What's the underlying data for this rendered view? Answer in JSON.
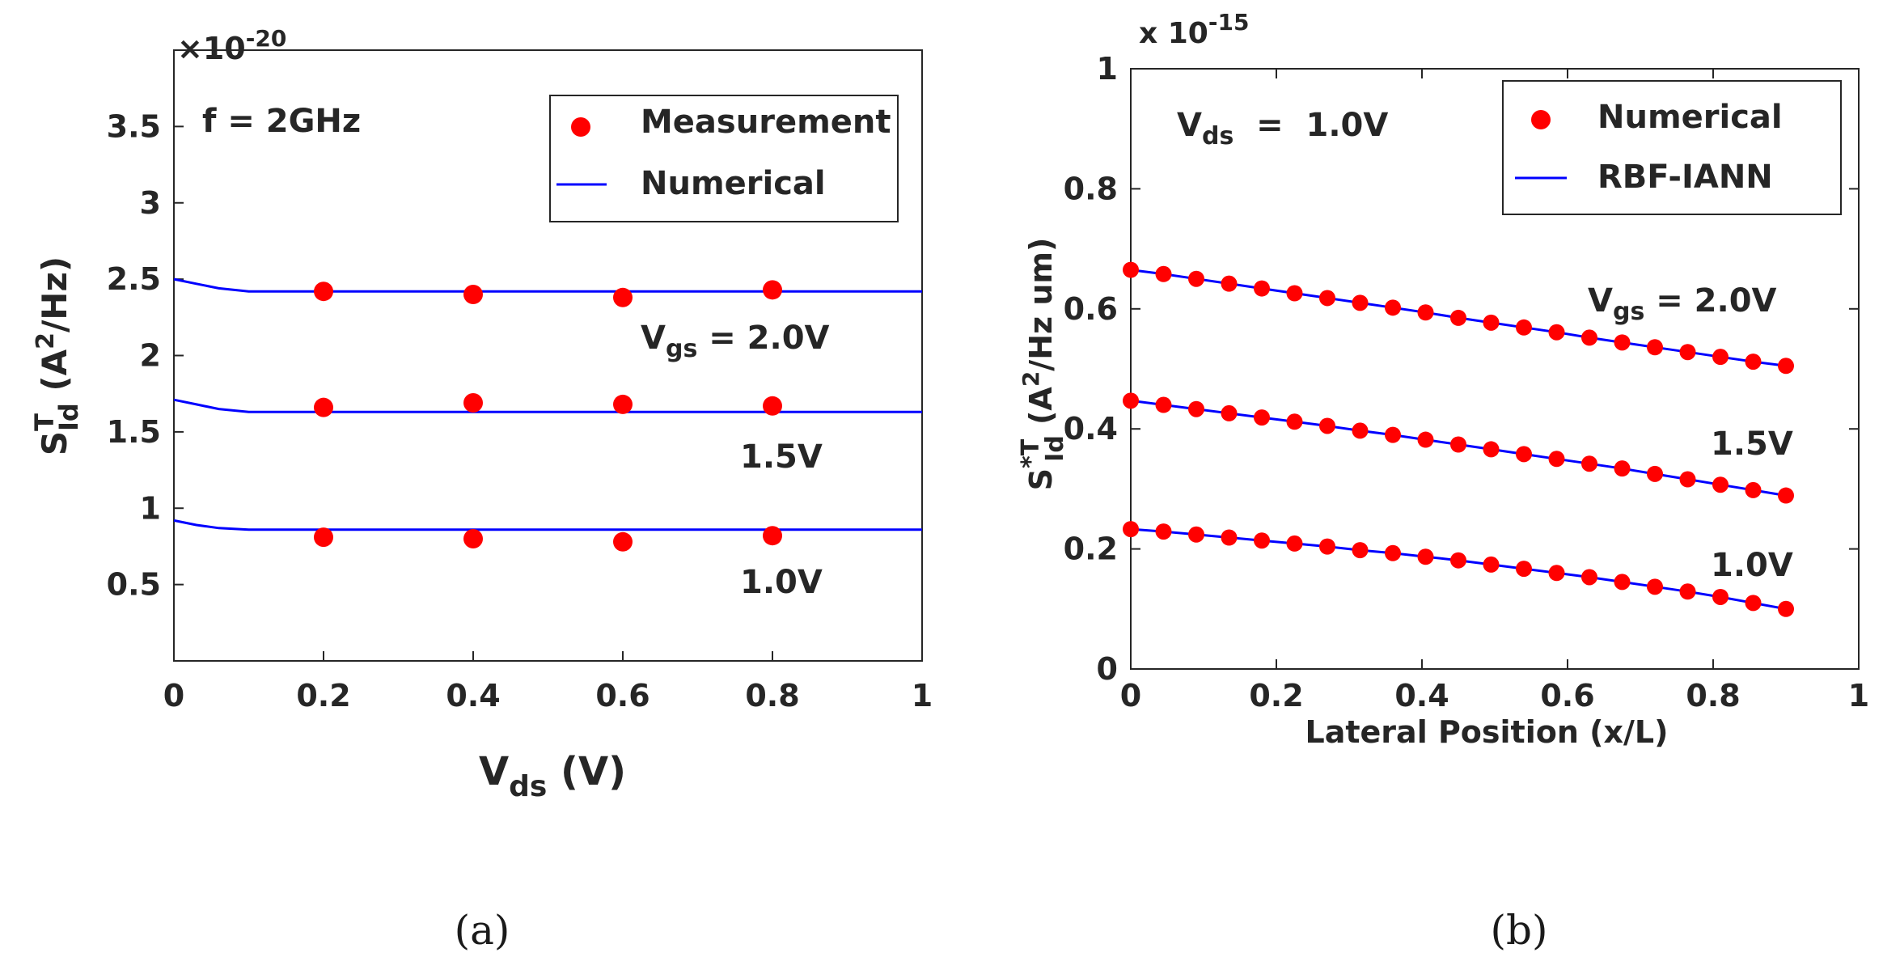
{
  "colors": {
    "measurement": "#ff0000",
    "numerical_line": "#0000ff",
    "axis": "#262626"
  },
  "chart_data": [
    {
      "panel": "(a)",
      "type": "line",
      "x_exponent_label": "×10",
      "exponent": "-20",
      "annotation": "f = 2GHz",
      "xlabel": {
        "main": "V",
        "sub": "ds",
        "rest": " (V)"
      },
      "ylabel": {
        "main": "S",
        "sup": "T",
        "sub": "Id",
        "rest1": " (A",
        "sup2": "2",
        "rest2": "/Hz)"
      },
      "xlim": [
        0,
        1
      ],
      "ylim": [
        0,
        4
      ],
      "xticks": [
        0,
        0.2,
        0.4,
        0.6,
        0.8,
        1
      ],
      "xticklabels": [
        "0",
        "0.2",
        "0.4",
        "0.6",
        "0.8",
        "1"
      ],
      "yticks": [
        0.5,
        1,
        1.5,
        2,
        2.5,
        3,
        3.5
      ],
      "yticklabels": [
        "0.5",
        "1",
        "1.5",
        "2",
        "2.5",
        "3",
        "3.5"
      ],
      "legend": {
        "position": "top-right",
        "entries": [
          "Measurement",
          "Numerical"
        ]
      },
      "series": [
        {
          "name": "Vgs = 2.0V",
          "label_main": "V",
          "label_sub": "gs",
          "label_rest": " =  2.0V",
          "measurement": {
            "x": [
              0.2,
              0.4,
              0.6,
              0.8
            ],
            "y": [
              2.42,
              2.4,
              2.38,
              2.43
            ]
          },
          "numerical": {
            "x": [
              0,
              0.03,
              0.06,
              0.1,
              0.15,
              0.2,
              1.0
            ],
            "y": [
              2.5,
              2.47,
              2.44,
              2.42,
              2.42,
              2.42,
              2.42
            ]
          }
        },
        {
          "name": "1.5V",
          "label_main": "1.5V",
          "label_sub": "",
          "label_rest": "",
          "measurement": {
            "x": [
              0.2,
              0.4,
              0.6,
              0.8
            ],
            "y": [
              1.66,
              1.69,
              1.68,
              1.67
            ]
          },
          "numerical": {
            "x": [
              0,
              0.03,
              0.06,
              0.1,
              0.15,
              0.2,
              1.0
            ],
            "y": [
              1.71,
              1.68,
              1.65,
              1.63,
              1.63,
              1.63,
              1.63
            ]
          }
        },
        {
          "name": "1.0V",
          "label_main": "1.0V",
          "label_sub": "",
          "label_rest": "",
          "measurement": {
            "x": [
              0.2,
              0.4,
              0.6,
              0.8
            ],
            "y": [
              0.81,
              0.8,
              0.78,
              0.82
            ]
          },
          "numerical": {
            "x": [
              0,
              0.03,
              0.06,
              0.1,
              0.15,
              0.2,
              1.0
            ],
            "y": [
              0.92,
              0.89,
              0.87,
              0.86,
              0.86,
              0.86,
              0.86
            ]
          }
        }
      ]
    },
    {
      "panel": "(b)",
      "type": "line",
      "x_exponent_label": "x 10",
      "exponent": "-15",
      "annotation": {
        "main": "V",
        "sub": "ds",
        "rest": "  =  1.0V"
      },
      "xlabel": "Lateral Position (x/L)",
      "ylabel": {
        "main": "S",
        "sup": "*T",
        "sub": "Id",
        "rest1": " (A",
        "sup2": "2",
        "rest2": "/Hz um)"
      },
      "xlim": [
        0,
        1
      ],
      "ylim": [
        0,
        1
      ],
      "xticks": [
        0,
        0.2,
        0.4,
        0.6,
        0.8,
        1
      ],
      "xticklabels": [
        "0",
        "0.2",
        "0.4",
        "0.6",
        "0.8",
        "1"
      ],
      "yticks": [
        0,
        0.2,
        0.4,
        0.6,
        0.8,
        1
      ],
      "yticklabels": [
        "0",
        "0.2",
        "0.4",
        "0.6",
        "0.8",
        "1"
      ],
      "legend": {
        "position": "top-right",
        "entries": [
          "Numerical",
          "RBF-IANN"
        ]
      },
      "series": [
        {
          "name": "Vgs = 2.0V",
          "label_main": "V",
          "label_sub": "gs",
          "label_rest": " =  2.0V",
          "x": [
            0,
            0.045,
            0.09,
            0.135,
            0.18,
            0.225,
            0.27,
            0.315,
            0.36,
            0.405,
            0.45,
            0.495,
            0.54,
            0.585,
            0.63,
            0.675,
            0.72,
            0.765,
            0.81,
            0.855,
            0.9
          ],
          "y": [
            0.665,
            0.658,
            0.65,
            0.642,
            0.634,
            0.626,
            0.618,
            0.61,
            0.602,
            0.594,
            0.585,
            0.577,
            0.569,
            0.561,
            0.552,
            0.544,
            0.536,
            0.528,
            0.52,
            0.512,
            0.505
          ]
        },
        {
          "name": "1.5V",
          "label_main": "1.5V",
          "label_sub": "",
          "label_rest": "",
          "x": [
            0,
            0.045,
            0.09,
            0.135,
            0.18,
            0.225,
            0.27,
            0.315,
            0.36,
            0.405,
            0.45,
            0.495,
            0.54,
            0.585,
            0.63,
            0.675,
            0.72,
            0.765,
            0.81,
            0.855,
            0.9
          ],
          "y": [
            0.447,
            0.44,
            0.433,
            0.426,
            0.419,
            0.412,
            0.405,
            0.397,
            0.39,
            0.382,
            0.374,
            0.366,
            0.358,
            0.35,
            0.342,
            0.334,
            0.325,
            0.316,
            0.307,
            0.298,
            0.289
          ]
        },
        {
          "name": "1.0V",
          "label_main": "1.0V",
          "label_sub": "",
          "label_rest": "",
          "x": [
            0,
            0.045,
            0.09,
            0.135,
            0.18,
            0.225,
            0.27,
            0.315,
            0.36,
            0.405,
            0.45,
            0.495,
            0.54,
            0.585,
            0.63,
            0.675,
            0.72,
            0.765,
            0.81,
            0.855,
            0.9
          ],
          "y": [
            0.233,
            0.229,
            0.224,
            0.219,
            0.214,
            0.209,
            0.204,
            0.198,
            0.193,
            0.187,
            0.181,
            0.174,
            0.167,
            0.16,
            0.153,
            0.145,
            0.137,
            0.129,
            0.12,
            0.11,
            0.1
          ]
        }
      ]
    }
  ]
}
